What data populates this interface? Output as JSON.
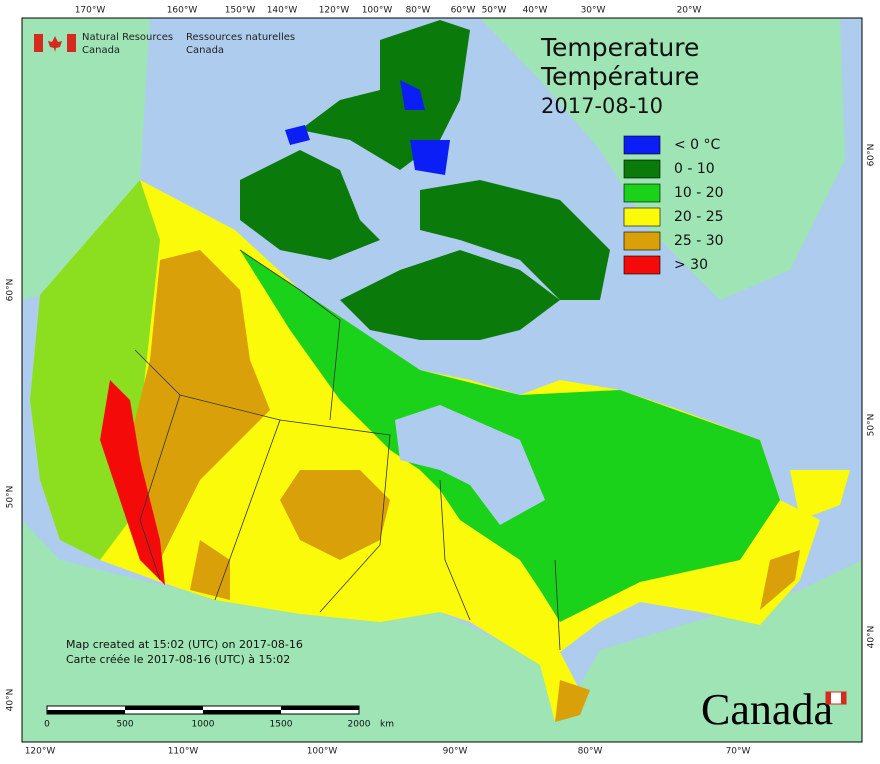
{
  "logo": {
    "english": [
      "Natural Resources",
      "Canada"
    ],
    "french": [
      "Ressources naturelles",
      "Canada"
    ]
  },
  "title": [
    "Temperature",
    "Température",
    "2017-08-10"
  ],
  "legend": [
    {
      "label": "< 0 °C",
      "color": "#0a1ef5"
    },
    {
      "label": "0 - 10",
      "color": "#0a7a0a"
    },
    {
      "label": "10 - 20",
      "color": "#19d219"
    },
    {
      "label": "20 - 25",
      "color": "#fafa0a"
    },
    {
      "label": "25 - 30",
      "color": "#d9a00a"
    },
    {
      "label": "> 30",
      "color": "#f50a0a"
    }
  ],
  "graticule": {
    "top": [
      "170°W",
      "160°W",
      "150°W",
      "140°W",
      "120°W",
      "100°W",
      "80°W",
      "60°W",
      "50°W",
      "40°W",
      "30°W",
      "20°W"
    ],
    "bottom": [
      "120°W",
      "110°W",
      "100°W",
      "90°W",
      "80°W",
      "70°W"
    ],
    "left": [
      "60°N",
      "50°N",
      "40°N"
    ],
    "right": [
      "60°N",
      "50°N",
      "40°N"
    ]
  },
  "footnote": [
    "Map created at 15:02 (UTC) on 2017-08-16",
    "Carte créée le 2017-08-16 (UTC) à 15:02"
  ],
  "scale_bar": {
    "labels": [
      "0",
      "500",
      "1000",
      "1500",
      "2000"
    ],
    "unit": "km"
  },
  "wordmark": "Canada"
}
